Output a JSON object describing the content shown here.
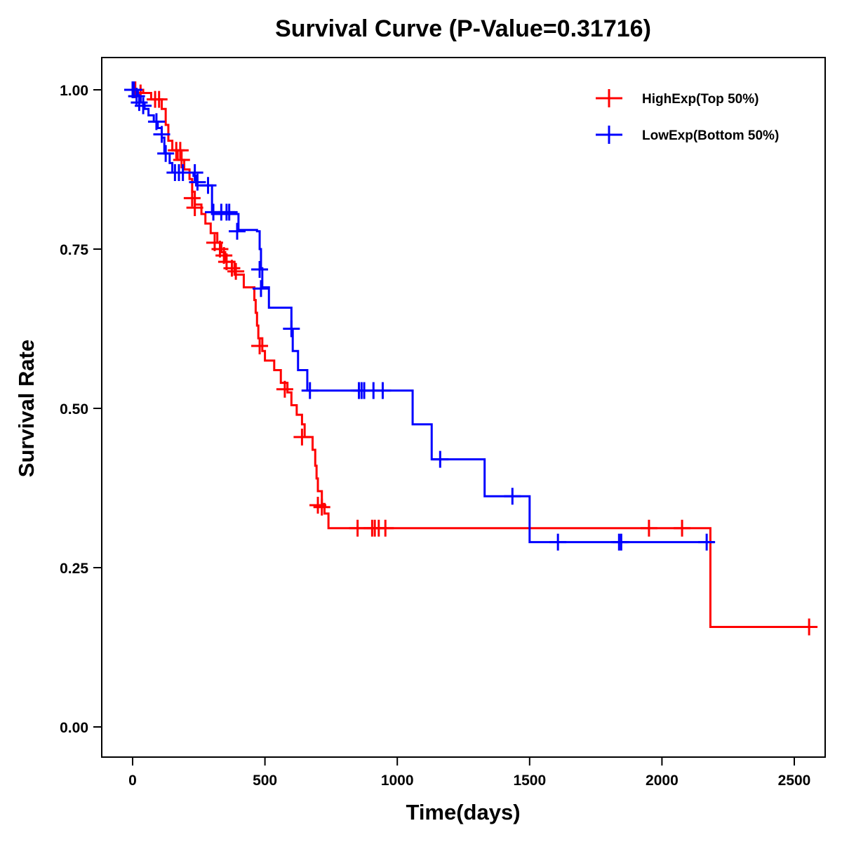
{
  "chart_data": {
    "type": "line",
    "subtype": "kaplan-meier",
    "title": "Survival Curve (P-Value=0.31716)",
    "xlabel": "Time(days)",
    "ylabel": "Survival Rate",
    "xlim": [
      -110,
      2620
    ],
    "ylim": [
      -0.05,
      1.05
    ],
    "xticks": [
      0,
      500,
      1000,
      1500,
      2000,
      2500
    ],
    "xtick_labels": [
      "0",
      "500",
      "1000",
      "1500",
      "2000",
      "2500"
    ],
    "yticks": [
      0,
      0.25,
      0.5,
      0.75,
      1.0
    ],
    "ytick_labels": [
      "0.00",
      "0.25",
      "0.50",
      "0.75",
      "1.00"
    ],
    "grid": false,
    "legend_position": "top-right",
    "series": [
      {
        "name": "HighExp(Top 50%)",
        "color": "#ff0000",
        "steps": [
          [
            0,
            1.0
          ],
          [
            40,
            0.995
          ],
          [
            70,
            0.985
          ],
          [
            110,
            0.97
          ],
          [
            125,
            0.945
          ],
          [
            135,
            0.92
          ],
          [
            150,
            0.905
          ],
          [
            170,
            0.89
          ],
          [
            195,
            0.875
          ],
          [
            215,
            0.86
          ],
          [
            225,
            0.84
          ],
          [
            235,
            0.82
          ],
          [
            260,
            0.805
          ],
          [
            275,
            0.79
          ],
          [
            295,
            0.775
          ],
          [
            320,
            0.76
          ],
          [
            335,
            0.745
          ],
          [
            350,
            0.73
          ],
          [
            385,
            0.71
          ],
          [
            420,
            0.69
          ],
          [
            455,
            0.69
          ],
          [
            460,
            0.67
          ],
          [
            465,
            0.65
          ],
          [
            470,
            0.63
          ],
          [
            475,
            0.61
          ],
          [
            490,
            0.59
          ],
          [
            500,
            0.575
          ],
          [
            535,
            0.56
          ],
          [
            560,
            0.54
          ],
          [
            585,
            0.525
          ],
          [
            600,
            0.505
          ],
          [
            620,
            0.49
          ],
          [
            640,
            0.475
          ],
          [
            650,
            0.455
          ],
          [
            680,
            0.435
          ],
          [
            690,
            0.41
          ],
          [
            695,
            0.39
          ],
          [
            700,
            0.37
          ],
          [
            715,
            0.35
          ],
          [
            725,
            0.335
          ],
          [
            740,
            0.312
          ],
          [
            2183,
            0.157
          ],
          [
            2560,
            0.157
          ]
        ],
        "censored": [
          [
            10,
            1.0
          ],
          [
            30,
            0.995
          ],
          [
            85,
            0.985
          ],
          [
            100,
            0.985
          ],
          [
            165,
            0.905
          ],
          [
            180,
            0.905
          ],
          [
            185,
            0.89
          ],
          [
            225,
            0.83
          ],
          [
            235,
            0.815
          ],
          [
            310,
            0.76
          ],
          [
            330,
            0.75
          ],
          [
            345,
            0.74
          ],
          [
            355,
            0.73
          ],
          [
            375,
            0.72
          ],
          [
            390,
            0.715
          ],
          [
            480,
            0.598
          ],
          [
            575,
            0.53
          ],
          [
            640,
            0.455
          ],
          [
            700,
            0.348
          ],
          [
            715,
            0.345
          ],
          [
            850,
            0.312
          ],
          [
            905,
            0.312
          ],
          [
            915,
            0.312
          ],
          [
            930,
            0.312
          ],
          [
            955,
            0.312
          ],
          [
            1951,
            0.312
          ],
          [
            2076,
            0.312
          ],
          [
            2556,
            0.157
          ]
        ]
      },
      {
        "name": "LowExp(Bottom 50%)",
        "color": "#0000ff",
        "steps": [
          [
            0,
            1.0
          ],
          [
            20,
            0.99
          ],
          [
            30,
            0.98
          ],
          [
            45,
            0.97
          ],
          [
            60,
            0.96
          ],
          [
            80,
            0.95
          ],
          [
            95,
            0.94
          ],
          [
            110,
            0.925
          ],
          [
            120,
            0.9
          ],
          [
            140,
            0.885
          ],
          [
            150,
            0.87
          ],
          [
            230,
            0.865
          ],
          [
            240,
            0.85
          ],
          [
            290,
            0.85
          ],
          [
            300,
            0.805
          ],
          [
            400,
            0.78
          ],
          [
            470,
            0.778
          ],
          [
            480,
            0.75
          ],
          [
            485,
            0.72
          ],
          [
            490,
            0.69
          ],
          [
            515,
            0.658
          ],
          [
            600,
            0.625
          ],
          [
            605,
            0.59
          ],
          [
            625,
            0.56
          ],
          [
            660,
            0.528
          ],
          [
            1058,
            0.475
          ],
          [
            1130,
            0.42
          ],
          [
            1330,
            0.362
          ],
          [
            1500,
            0.29
          ],
          [
            2198,
            0.29
          ]
        ],
        "censored": [
          [
            0,
            1.0
          ],
          [
            5,
            1.0
          ],
          [
            15,
            0.99
          ],
          [
            25,
            0.98
          ],
          [
            40,
            0.975
          ],
          [
            90,
            0.95
          ],
          [
            110,
            0.93
          ],
          [
            125,
            0.9
          ],
          [
            160,
            0.87
          ],
          [
            175,
            0.87
          ],
          [
            190,
            0.87
          ],
          [
            235,
            0.87
          ],
          [
            245,
            0.855
          ],
          [
            285,
            0.85
          ],
          [
            305,
            0.808
          ],
          [
            335,
            0.808
          ],
          [
            355,
            0.808
          ],
          [
            365,
            0.808
          ],
          [
            395,
            0.778
          ],
          [
            480,
            0.718
          ],
          [
            485,
            0.688
          ],
          [
            600,
            0.625
          ],
          [
            670,
            0.528
          ],
          [
            855,
            0.528
          ],
          [
            865,
            0.528
          ],
          [
            875,
            0.528
          ],
          [
            910,
            0.528
          ],
          [
            945,
            0.528
          ],
          [
            1162,
            0.42
          ],
          [
            1435,
            0.362
          ],
          [
            1607,
            0.29
          ],
          [
            1838,
            0.29
          ],
          [
            1846,
            0.29
          ],
          [
            2169,
            0.29
          ]
        ]
      }
    ]
  }
}
